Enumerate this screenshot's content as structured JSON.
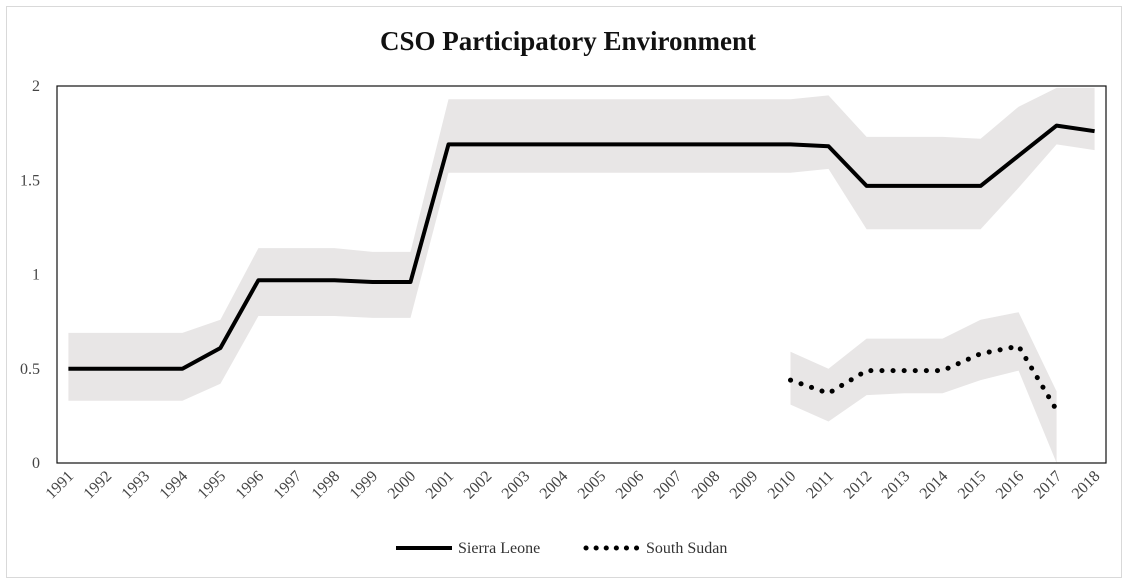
{
  "chart_data": {
    "type": "line",
    "title": "CSO Participatory Environment",
    "xlabel": "",
    "ylabel": "",
    "x": [
      "1991",
      "1992",
      "1993",
      "1994",
      "1995",
      "1996",
      "1997",
      "1998",
      "1999",
      "2000",
      "2001",
      "2002",
      "2003",
      "2004",
      "2005",
      "2006",
      "2007",
      "2008",
      "2009",
      "2010",
      "2011",
      "2012",
      "2013",
      "2014",
      "2015",
      "2016",
      "2017",
      "2018"
    ],
    "ylim": [
      0,
      2
    ],
    "yticks": [
      "0",
      "0.5",
      "1",
      "1.5",
      "2"
    ],
    "grid": false,
    "legend_position": "bottom",
    "series": [
      {
        "name": "Sierra Leone",
        "style": "solid",
        "color": "#000000",
        "values": [
          0.5,
          0.5,
          0.5,
          0.5,
          0.61,
          0.97,
          0.97,
          0.97,
          0.96,
          0.96,
          1.69,
          1.69,
          1.69,
          1.69,
          1.69,
          1.69,
          1.69,
          1.69,
          1.69,
          1.69,
          1.68,
          1.47,
          1.47,
          1.47,
          1.47,
          1.63,
          1.79,
          1.76
        ],
        "band_lower": [
          0.33,
          0.33,
          0.33,
          0.33,
          0.42,
          0.78,
          0.78,
          0.78,
          0.77,
          0.77,
          1.54,
          1.54,
          1.54,
          1.54,
          1.54,
          1.54,
          1.54,
          1.54,
          1.54,
          1.54,
          1.56,
          1.24,
          1.24,
          1.24,
          1.24,
          1.46,
          1.69,
          1.66
        ],
        "band_upper": [
          0.69,
          0.69,
          0.69,
          0.69,
          0.76,
          1.14,
          1.14,
          1.14,
          1.12,
          1.12,
          1.93,
          1.93,
          1.93,
          1.93,
          1.93,
          1.93,
          1.93,
          1.93,
          1.93,
          1.93,
          1.95,
          1.73,
          1.73,
          1.73,
          1.72,
          1.89,
          1.99,
          1.99
        ]
      },
      {
        "name": "South Sudan",
        "style": "dotted",
        "color": "#000000",
        "values": [
          null,
          null,
          null,
          null,
          null,
          null,
          null,
          null,
          null,
          null,
          null,
          null,
          null,
          null,
          null,
          null,
          null,
          null,
          null,
          0.44,
          0.37,
          0.49,
          0.49,
          0.49,
          0.58,
          0.62,
          0.28,
          null
        ],
        "band_lower": [
          null,
          null,
          null,
          null,
          null,
          null,
          null,
          null,
          null,
          null,
          null,
          null,
          null,
          null,
          null,
          null,
          null,
          null,
          null,
          0.31,
          0.22,
          0.36,
          0.37,
          0.37,
          0.44,
          0.49,
          0.0,
          null
        ],
        "band_upper": [
          null,
          null,
          null,
          null,
          null,
          null,
          null,
          null,
          null,
          null,
          null,
          null,
          null,
          null,
          null,
          null,
          null,
          null,
          null,
          0.59,
          0.5,
          0.66,
          0.66,
          0.66,
          0.76,
          0.8,
          0.38,
          null
        ]
      }
    ],
    "band_color": "#e8e6e6"
  }
}
